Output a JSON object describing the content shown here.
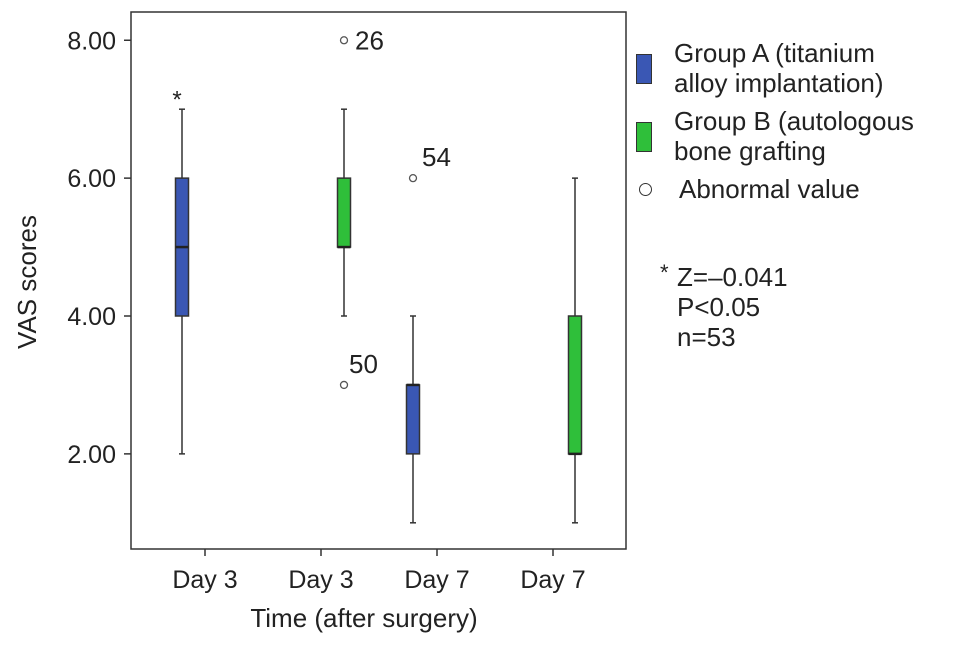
{
  "chart_data": {
    "type": "box",
    "xlabel": "Time (after surgery)",
    "ylabel": "VAS scores",
    "ylim": [
      0.62,
      8.41
    ],
    "yticks": [
      "2.00",
      "4.00",
      "6.00",
      "8.00"
    ],
    "ytick_values": [
      2,
      4,
      6,
      8
    ],
    "categories": [
      "Day 3",
      "Day 3",
      "Day 7",
      "Day 7"
    ],
    "grid": false,
    "legend_position": "right",
    "boxes": [
      {
        "category": "Day 3",
        "group": "A",
        "color": "#3a57b4",
        "whisker_low": 2,
        "q1": 4,
        "median": 5,
        "q3": 6,
        "whisker_high": 7,
        "outliers": [
          {
            "value": 7.2,
            "marker": "*",
            "label": ""
          }
        ]
      },
      {
        "category": "Day 3",
        "group": "B",
        "color": "#2fbf3a",
        "whisker_low": 4,
        "q1": 5,
        "median": 5,
        "q3": 6,
        "whisker_high": 7,
        "outliers": [
          {
            "value": 8,
            "marker": "o",
            "label": "26"
          },
          {
            "value": 3,
            "marker": "o",
            "label": "50"
          }
        ]
      },
      {
        "category": "Day 7",
        "group": "A",
        "color": "#3a57b4",
        "whisker_low": 1,
        "q1": 2,
        "median": 3,
        "q3": 3,
        "whisker_high": 4,
        "outliers": [
          {
            "value": 6,
            "marker": "o",
            "label": "54"
          }
        ]
      },
      {
        "category": "Day 7",
        "group": "B",
        "color": "#2fbf3a",
        "whisker_low": 1,
        "q1": 2,
        "median": 2,
        "q3": 4,
        "whisker_high": 6,
        "outliers": []
      }
    ],
    "legend": [
      {
        "label": "Group A (titanium\nalloy implantation)",
        "color": "#3a57b4"
      },
      {
        "label": "Group B (autologous\nbone grafting",
        "color": "#2fbf3a"
      },
      {
        "label": "Abnormal value",
        "marker": "circle"
      }
    ],
    "annotation": {
      "star": "*",
      "lines": [
        "Z=–0.041",
        "P<0.05",
        "n=53"
      ]
    }
  }
}
